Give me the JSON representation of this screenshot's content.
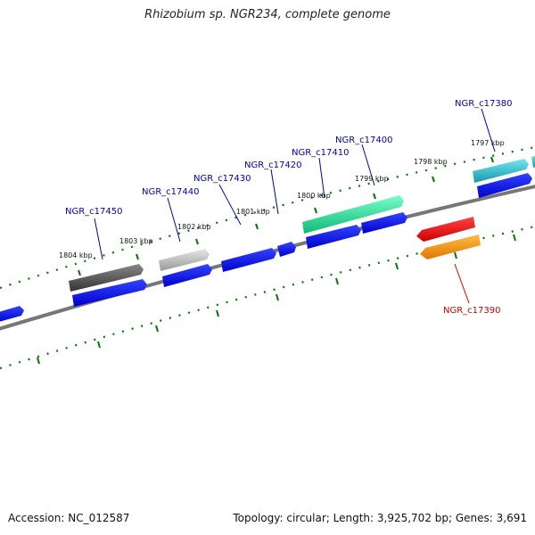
{
  "title": "Rhizobium sp. NGR234, complete genome",
  "footer": {
    "accession": "Accession: NC_012587",
    "summary": "Topology: circular; Length: 3,925,702 bp; Genes: 3,691"
  },
  "scale_labels": [
    "1804 kbp",
    "1803 kbp",
    "1802 kbp",
    "1801 kbp",
    "1800 kbp",
    "1799 kbp",
    "1798 kbp",
    "1797 kbp"
  ],
  "gene_labels": [
    "NGR_c17450",
    "NGR_c17440",
    "NGR_c17430",
    "NGR_c17420",
    "NGR_c17410",
    "NGR_c17400",
    "NGR_c17380",
    "NGR_c17390"
  ],
  "colors": {
    "backbone": "#777777",
    "tick": "#007700",
    "cds": "#0000ee",
    "gene_dark": "#555555",
    "gene_light": "#bbbbbb",
    "gene_green": "#22dd99",
    "gene_teal": "#22bbcc",
    "gene_red": "#ee0000",
    "gene_orange": "#ff9900",
    "label_blue": "#0000b0",
    "label_red": "#cc0000"
  }
}
